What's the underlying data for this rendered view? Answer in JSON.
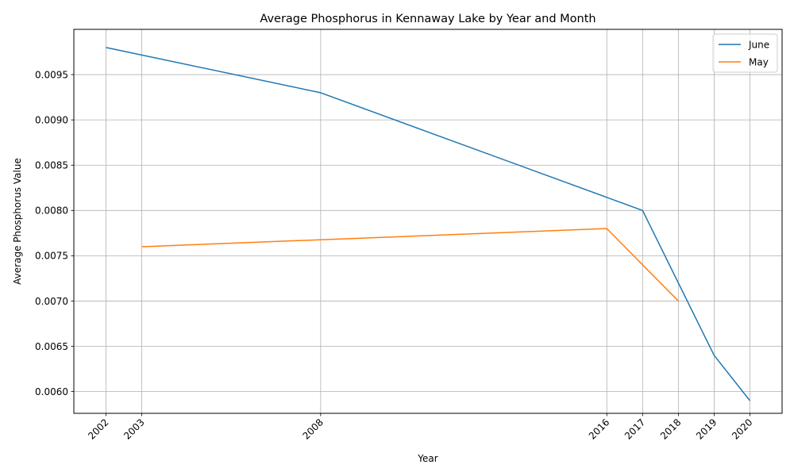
{
  "chart_data": {
    "type": "line",
    "title": "Average Phosphorus in Kennaway Lake by Year and Month",
    "xlabel": "Year",
    "ylabel": "Average Phosphorus Value",
    "x_ticks": [
      2002,
      2003,
      2008,
      2016,
      2017,
      2018,
      2019,
      2020
    ],
    "xlim": [
      2001.1,
      2020.9
    ],
    "ylim": [
      0.00576,
      0.01
    ],
    "y_ticks": [
      0.006,
      0.0065,
      0.007,
      0.0075,
      0.008,
      0.0085,
      0.009,
      0.0095
    ],
    "y_tick_labels": [
      "0.0060",
      "0.0065",
      "0.0070",
      "0.0075",
      "0.0080",
      "0.0085",
      "0.0090",
      "0.0095"
    ],
    "grid": true,
    "legend_position": "top-right",
    "series": [
      {
        "name": "June",
        "color": "#1f77b4",
        "x": [
          2002,
          2008,
          2017,
          2019,
          2020
        ],
        "y": [
          0.0098,
          0.0093,
          0.008,
          0.0064,
          0.0059
        ]
      },
      {
        "name": "May",
        "color": "#ff7f0e",
        "x": [
          2003,
          2016,
          2018
        ],
        "y": [
          0.0076,
          0.0078,
          0.007
        ]
      }
    ]
  }
}
